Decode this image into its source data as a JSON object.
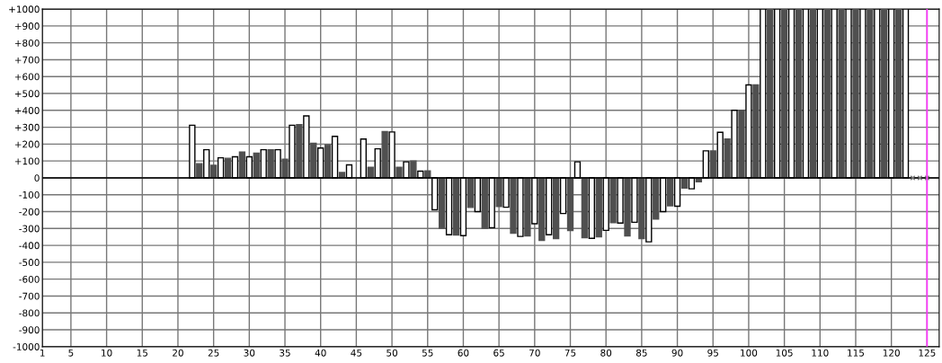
{
  "chart_data": {
    "type": "bar",
    "series": [
      {
        "color": "#ffffff",
        "x": [
          22,
          24,
          26,
          28,
          30,
          32,
          34,
          36,
          38,
          40,
          42,
          44,
          46,
          48,
          50,
          52,
          54,
          56,
          58,
          60,
          62,
          64,
          66,
          68,
          70,
          72,
          74,
          76,
          78,
          80,
          82,
          84,
          86,
          88,
          90,
          92,
          94,
          96,
          98,
          100,
          102,
          104,
          106,
          108,
          110,
          112,
          114,
          116,
          118,
          120,
          122
        ],
        "values": [
          312,
          167,
          119,
          125,
          125,
          167,
          167,
          312,
          367,
          177,
          246,
          77,
          230,
          172,
          272,
          95,
          40,
          -189,
          -337,
          -342,
          -200,
          -295,
          -174,
          -347,
          -272,
          -337,
          -211,
          95,
          -358,
          -311,
          -268,
          -263,
          -379,
          -200,
          -168,
          -65,
          160,
          270,
          400,
          551,
          1000,
          1000,
          1000,
          1000,
          1000,
          1000,
          1000,
          1000,
          1000,
          1000,
          1000
        ]
      },
      {
        "color": "#505050",
        "x": [
          23,
          25,
          27,
          29,
          31,
          33,
          35,
          37,
          39,
          41,
          43,
          45,
          47,
          49,
          51,
          53,
          55,
          57,
          59,
          61,
          63,
          65,
          67,
          69,
          71,
          73,
          75,
          77,
          79,
          81,
          83,
          85,
          87,
          89,
          91,
          93,
          95,
          97,
          99,
          101,
          103,
          105,
          107,
          109,
          111,
          113,
          115,
          117,
          119,
          121
        ],
        "values": [
          84,
          74,
          116,
          153,
          147,
          167,
          111,
          316,
          205,
          196,
          32,
          null,
          63,
          274,
          63,
          100,
          42,
          -298,
          -339,
          -175,
          -298,
          -170,
          -328,
          -344,
          -370,
          -360,
          -312,
          -354,
          -349,
          -265,
          -344,
          -360,
          -244,
          -165,
          -60,
          -23,
          160,
          230,
          400,
          551,
          1000,
          1000,
          1000,
          1000,
          1000,
          1000,
          1000,
          1000,
          1000,
          1000
        ]
      },
      {
        "type": "scatter",
        "marker": "cross",
        "color": "#777777",
        "x": [
          123,
          124,
          125
        ],
        "values": [
          0,
          0,
          0
        ]
      }
    ],
    "xlim": [
      1,
      126.7
    ],
    "ylim": [
      -1000,
      1000
    ],
    "xticks": [
      1,
      5,
      10,
      15,
      20,
      25,
      30,
      35,
      40,
      45,
      50,
      55,
      60,
      65,
      70,
      75,
      80,
      85,
      90,
      95,
      100,
      105,
      110,
      115,
      120,
      125
    ],
    "yticks": [
      {
        "value": 1000,
        "label": "+1000"
      },
      {
        "value": 900,
        "label": "+900"
      },
      {
        "value": 800,
        "label": "+800"
      },
      {
        "value": 700,
        "label": "+700"
      },
      {
        "value": 600,
        "label": "+600"
      },
      {
        "value": 500,
        "label": "+500"
      },
      {
        "value": 400,
        "label": "+400"
      },
      {
        "value": 300,
        "label": "+300"
      },
      {
        "value": 200,
        "label": "+200"
      },
      {
        "value": 100,
        "label": "+100"
      },
      0,
      {
        "value": -100,
        "label": "-100"
      },
      {
        "value": -200,
        "label": "-200"
      },
      {
        "value": -300,
        "label": "-300"
      },
      {
        "value": -400,
        "label": "-400"
      },
      {
        "value": -500,
        "label": "-500"
      },
      {
        "value": -600,
        "label": "-600"
      },
      {
        "value": -700,
        "label": "-700"
      },
      {
        "value": -800,
        "label": "-800"
      },
      {
        "value": -900,
        "label": "-900"
      },
      {
        "value": -1000,
        "label": "-1000"
      }
    ],
    "grid": true,
    "ref_lines": [
      {
        "axis": "x",
        "value": 125,
        "color": "#ff33ff"
      }
    ]
  }
}
